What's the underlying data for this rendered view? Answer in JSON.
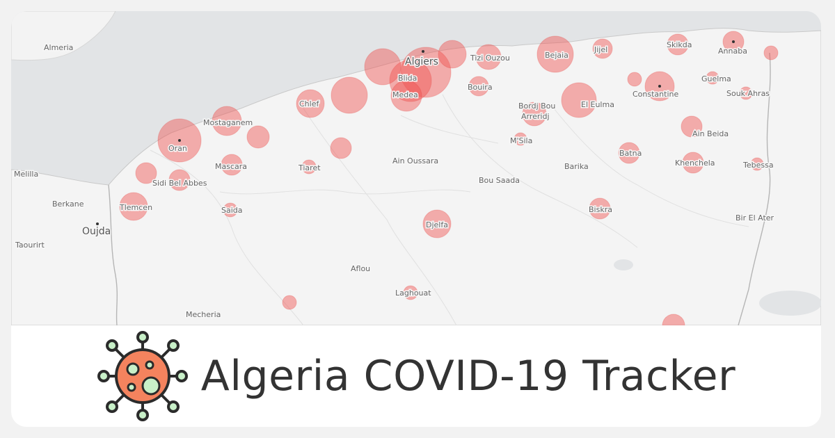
{
  "title": "Algeria COVID-19 Tracker",
  "logo_icon": "virus-icon",
  "colors": {
    "sea": "#e2e4e6",
    "land": "#f4f4f4",
    "bubble": "#ef5350",
    "virus_body": "#f4835e",
    "virus_outline": "#2b2b2b",
    "virus_spikes": "#c8f0c8",
    "title_text": "#333333"
  },
  "cities": [
    {
      "name": "Almeria",
      "id": "almeria"
    },
    {
      "name": "Algiers",
      "id": "algiers"
    },
    {
      "name": "Blida",
      "id": "blida"
    },
    {
      "name": "Medea",
      "id": "medea"
    },
    {
      "name": "Tizi Ouzou",
      "id": "tizi-ouzou"
    },
    {
      "name": "Bejaia",
      "id": "bejaia"
    },
    {
      "name": "Jijel",
      "id": "jijel"
    },
    {
      "name": "Skikda",
      "id": "skikda"
    },
    {
      "name": "Annaba",
      "id": "annaba"
    },
    {
      "name": "Guelma",
      "id": "guelma"
    },
    {
      "name": "Souk Ahras",
      "id": "souk-ahras"
    },
    {
      "name": "Constantine",
      "id": "constantine"
    },
    {
      "name": "Bouira",
      "id": "bouira"
    },
    {
      "name": "Bordj Bou",
      "id": "bordj-bou-1"
    },
    {
      "name": "Arreridj",
      "id": "bordj-bou-2"
    },
    {
      "name": "El Eulma",
      "id": "el-eulma"
    },
    {
      "name": "Chlef",
      "id": "chlef"
    },
    {
      "name": "Mostaganem",
      "id": "mostaganem"
    },
    {
      "name": "Oran",
      "id": "oran"
    },
    {
      "name": "Ain Beida",
      "id": "ain-beida"
    },
    {
      "name": "M'Sila",
      "id": "msila"
    },
    {
      "name": "Batna",
      "id": "batna"
    },
    {
      "name": "Melilla",
      "id": "melilla"
    },
    {
      "name": "Mascara",
      "id": "mascara"
    },
    {
      "name": "Tiaret",
      "id": "tiaret"
    },
    {
      "name": "Ain Oussara",
      "id": "ain-oussara"
    },
    {
      "name": "Barika",
      "id": "barika"
    },
    {
      "name": "Khenchela",
      "id": "khenchela"
    },
    {
      "name": "Tebessa",
      "id": "tebessa"
    },
    {
      "name": "Sidi Bel Abbes",
      "id": "sidi-bel-abbes"
    },
    {
      "name": "Bou Saada",
      "id": "bou-saada"
    },
    {
      "name": "Berkane",
      "id": "berkane"
    },
    {
      "name": "Tlemcen",
      "id": "tlemcen"
    },
    {
      "name": "Oujda",
      "id": "oujda"
    },
    {
      "name": "Saida",
      "id": "saida"
    },
    {
      "name": "Biskra",
      "id": "biskra"
    },
    {
      "name": "Bir El Ater",
      "id": "bir-el-ater"
    },
    {
      "name": "Taourirt",
      "id": "taourirt"
    },
    {
      "name": "Djelfa",
      "id": "djelfa"
    },
    {
      "name": "Aflou",
      "id": "aflou"
    },
    {
      "name": "Laghouat",
      "id": "laghouat"
    },
    {
      "name": "Mecheria",
      "id": "mecheria"
    }
  ]
}
